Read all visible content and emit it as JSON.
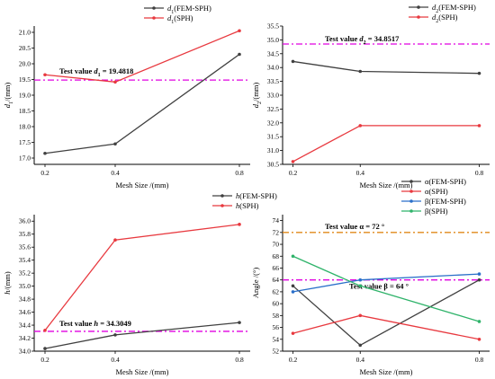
{
  "colors": {
    "fem_sph": "#404040",
    "sph": "#e8393f",
    "beta_fem_sph": "#2a6fc9",
    "beta_sph": "#2fb36a",
    "ref_magenta": "#e000e0",
    "ref_orange": "#e08a1a"
  },
  "chart_data": [
    {
      "type": "line",
      "x": [
        0.2,
        0.4,
        0.8
      ],
      "xticks": [
        "0.2",
        "0.4",
        "0.8"
      ],
      "ylim": [
        16.8,
        21.2
      ],
      "yticks": [
        "17.0",
        "17.5",
        "18.0",
        "18.5",
        "19.0",
        "19.5",
        "20.0",
        "20.5",
        "21.0"
      ],
      "xlabel": "Mesh Size /(mm)",
      "ylabel": "d1/(mm)",
      "legend_pos": "top-center",
      "series": [
        {
          "name": "d1(FEM-SPH)",
          "color": "#404040",
          "values": [
            17.15,
            17.45,
            20.3
          ]
        },
        {
          "name": "d1(SPH)",
          "color": "#e8393f",
          "values": [
            19.65,
            19.42,
            21.05
          ]
        }
      ],
      "reference": {
        "value": 19.4818,
        "color": "#e000e0",
        "label": "Test value   d1 = 19.4818"
      }
    },
    {
      "type": "line",
      "x": [
        0.2,
        0.4,
        0.8
      ],
      "xticks": [
        "0.2",
        "0.4",
        "0.8"
      ],
      "ylim": [
        30.5,
        35.5
      ],
      "yticks": [
        "30.5",
        "31.0",
        "31.5",
        "32.0",
        "32.5",
        "33.0",
        "33.5",
        "34.0",
        "34.5",
        "35.0",
        "35.5"
      ],
      "xlabel": "Mesh Size /(mm)",
      "ylabel": "d2/(mm)",
      "legend_pos": "top-right",
      "series": [
        {
          "name": "d2(FEM-SPH)",
          "color": "#404040",
          "values": [
            34.22,
            33.86,
            33.79
          ]
        },
        {
          "name": "d2(SPH)",
          "color": "#e8393f",
          "values": [
            30.6,
            31.9,
            31.9
          ]
        }
      ],
      "reference": {
        "value": 34.8517,
        "color": "#e000e0",
        "label": "Test value   d2 = 34.8517"
      }
    },
    {
      "type": "line",
      "x": [
        0.2,
        0.4,
        0.8
      ],
      "xticks": [
        "0.2",
        "0.4",
        "0.8"
      ],
      "ylim": [
        34.0,
        36.1
      ],
      "yticks": [
        "34.0",
        "34.2",
        "34.4",
        "34.6",
        "34.8",
        "35.0",
        "35.2",
        "35.4",
        "35.6",
        "35.8",
        "36.0"
      ],
      "xlabel": "Mesh Size /(mm)",
      "ylabel": "h/(mm)",
      "legend_pos": "top-right",
      "series": [
        {
          "name": "h(FEM-SPH)",
          "color": "#404040",
          "values": [
            34.04,
            34.25,
            34.44
          ]
        },
        {
          "name": "h(SPH)",
          "color": "#e8393f",
          "values": [
            34.32,
            35.71,
            35.95
          ]
        }
      ],
      "reference": {
        "value": 34.3049,
        "color": "#e000e0",
        "label": "Test value   h = 34.3049"
      }
    },
    {
      "type": "line",
      "x": [
        0.2,
        0.4,
        0.8
      ],
      "xticks": [
        "0.2",
        "0.4",
        "0.8"
      ],
      "ylim": [
        52,
        75
      ],
      "yticks": [
        "52",
        "54",
        "56",
        "58",
        "60",
        "62",
        "64",
        "66",
        "68",
        "70",
        "72",
        "74"
      ],
      "xlabel": "Mesh Size /(mm)",
      "ylabel": "Angle /(°)",
      "legend_pos": "top-right",
      "series": [
        {
          "name": "α(FEM-SPH)",
          "color": "#404040",
          "values": [
            63,
            53,
            64
          ]
        },
        {
          "name": "α(SPH)",
          "color": "#e8393f",
          "values": [
            55,
            58,
            54
          ]
        },
        {
          "name": "β(FEM-SPH)",
          "color": "#2a6fc9",
          "values": [
            62,
            64,
            65
          ]
        },
        {
          "name": "β(SPH)",
          "color": "#2fb36a",
          "values": [
            68,
            63,
            57
          ]
        }
      ],
      "references": [
        {
          "value": 72,
          "color": "#e08a1a",
          "label": "Test value   α = 72 °"
        },
        {
          "value": 64,
          "color": "#e000e0",
          "label": "Test value   β = 64 °"
        }
      ]
    }
  ]
}
